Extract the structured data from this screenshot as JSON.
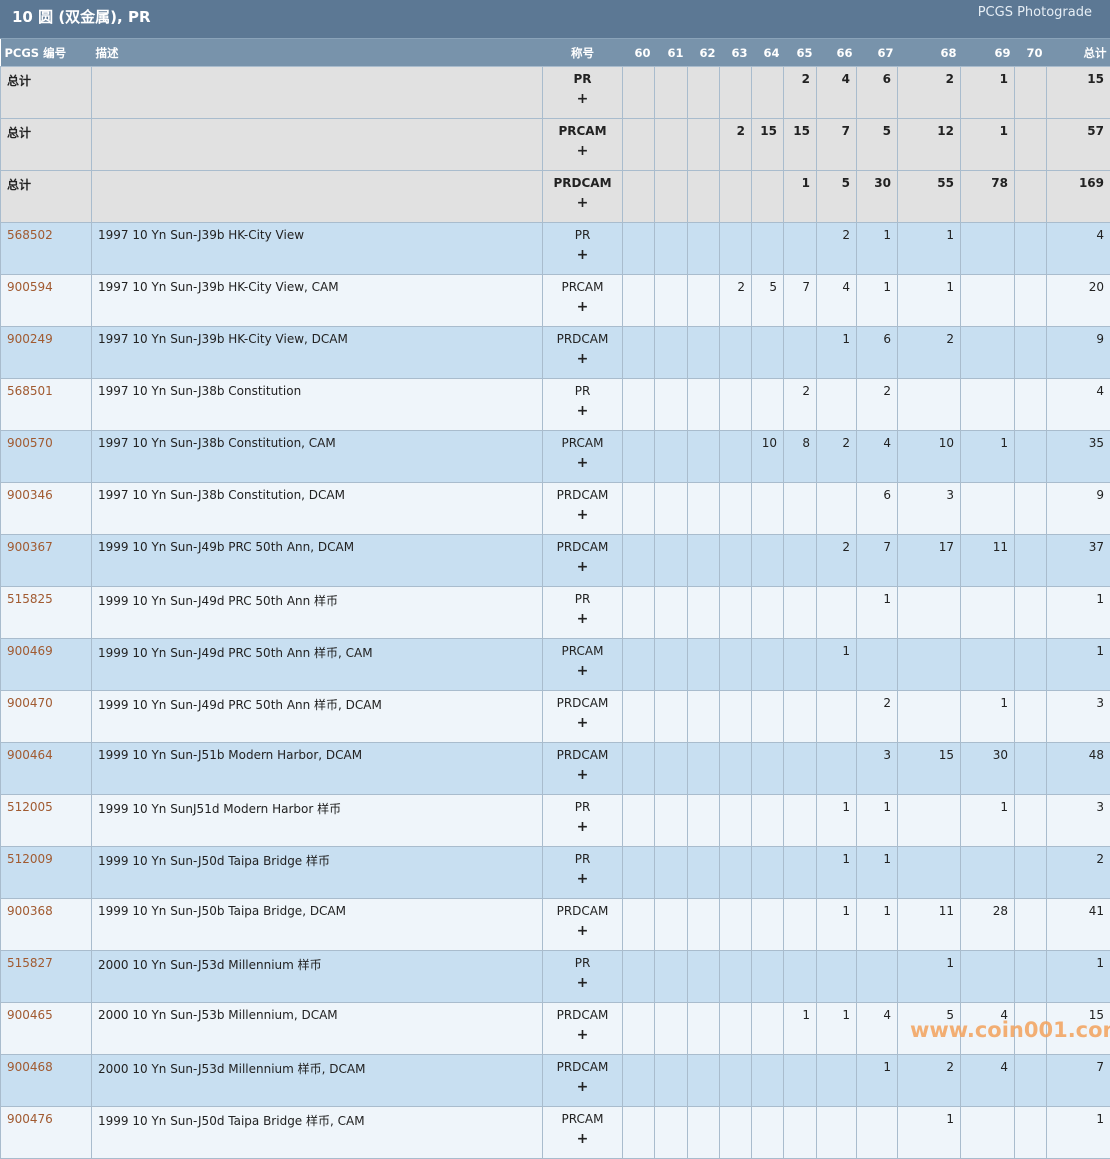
{
  "header": {
    "title": "10 圆 (双金属), PR",
    "brand": "PCGS Photograde"
  },
  "columns": [
    "PCGS 编号",
    "描述",
    "称号",
    "60",
    "61",
    "62",
    "63",
    "64",
    "65",
    "66",
    "67",
    "68",
    "69",
    "70",
    "总计"
  ],
  "expand_symbol": "+",
  "totals": [
    {
      "label": "总计",
      "designation": "PR",
      "grades": [
        "",
        "",
        "",
        "",
        "",
        "2",
        "4",
        "6",
        "2",
        "1",
        ""
      ],
      "total": "15"
    },
    {
      "label": "总计",
      "designation": "PRCAM",
      "grades": [
        "",
        "",
        "",
        "2",
        "15",
        "15",
        "7",
        "5",
        "12",
        "1",
        ""
      ],
      "total": "57"
    },
    {
      "label": "总计",
      "designation": "PRDCAM",
      "grades": [
        "",
        "",
        "",
        "",
        "",
        "1",
        "5",
        "30",
        "55",
        "78",
        ""
      ],
      "total": "169"
    }
  ],
  "rows": [
    {
      "id": "568502",
      "desc": "1997 10 Yn Sun-J39b HK-City View",
      "designation": "PR",
      "grades": [
        "",
        "",
        "",
        "",
        "",
        "",
        "2",
        "1",
        "1",
        "",
        ""
      ],
      "total": "4"
    },
    {
      "id": "900594",
      "desc": "1997 10 Yn Sun-J39b HK-City View, CAM",
      "designation": "PRCAM",
      "grades": [
        "",
        "",
        "",
        "2",
        "5",
        "7",
        "4",
        "1",
        "1",
        "",
        ""
      ],
      "total": "20"
    },
    {
      "id": "900249",
      "desc": "1997 10 Yn Sun-J39b HK-City View, DCAM",
      "designation": "PRDCAM",
      "grades": [
        "",
        "",
        "",
        "",
        "",
        "",
        "1",
        "6",
        "2",
        "",
        ""
      ],
      "total": "9"
    },
    {
      "id": "568501",
      "desc": "1997 10 Yn Sun-J38b Constitution",
      "designation": "PR",
      "grades": [
        "",
        "",
        "",
        "",
        "",
        "2",
        "",
        "2",
        "",
        "",
        ""
      ],
      "total": "4"
    },
    {
      "id": "900570",
      "desc": "1997 10 Yn Sun-J38b Constitution, CAM",
      "designation": "PRCAM",
      "grades": [
        "",
        "",
        "",
        "",
        "10",
        "8",
        "2",
        "4",
        "10",
        "1",
        ""
      ],
      "total": "35"
    },
    {
      "id": "900346",
      "desc": "1997 10 Yn Sun-J38b Constitution, DCAM",
      "designation": "PRDCAM",
      "grades": [
        "",
        "",
        "",
        "",
        "",
        "",
        "",
        "6",
        "3",
        "",
        ""
      ],
      "total": "9"
    },
    {
      "id": "900367",
      "desc": "1999 10 Yn Sun-J49b PRC 50th Ann, DCAM",
      "designation": "PRDCAM",
      "grades": [
        "",
        "",
        "",
        "",
        "",
        "",
        "2",
        "7",
        "17",
        "11",
        ""
      ],
      "total": "37"
    },
    {
      "id": "515825",
      "desc": "1999 10 Yn Sun-J49d PRC 50th Ann 样币",
      "designation": "PR",
      "grades": [
        "",
        "",
        "",
        "",
        "",
        "",
        "",
        "1",
        "",
        "",
        ""
      ],
      "total": "1"
    },
    {
      "id": "900469",
      "desc": "1999 10 Yn Sun-J49d PRC 50th Ann 样币, CAM",
      "designation": "PRCAM",
      "grades": [
        "",
        "",
        "",
        "",
        "",
        "",
        "1",
        "",
        "",
        "",
        ""
      ],
      "total": "1"
    },
    {
      "id": "900470",
      "desc": "1999 10 Yn Sun-J49d PRC 50th Ann 样币, DCAM",
      "designation": "PRDCAM",
      "grades": [
        "",
        "",
        "",
        "",
        "",
        "",
        "",
        "2",
        "",
        "1",
        ""
      ],
      "total": "3"
    },
    {
      "id": "900464",
      "desc": "1999 10 Yn Sun-J51b Modern Harbor, DCAM",
      "designation": "PRDCAM",
      "grades": [
        "",
        "",
        "",
        "",
        "",
        "",
        "",
        "3",
        "15",
        "30",
        ""
      ],
      "total": "48"
    },
    {
      "id": "512005",
      "desc": "1999 10 Yn SunJ51d Modern Harbor 样币",
      "designation": "PR",
      "grades": [
        "",
        "",
        "",
        "",
        "",
        "",
        "1",
        "1",
        "",
        "1",
        ""
      ],
      "total": "3"
    },
    {
      "id": "512009",
      "desc": "1999 10 Yn Sun-J50d Taipa Bridge 样币",
      "designation": "PR",
      "grades": [
        "",
        "",
        "",
        "",
        "",
        "",
        "1",
        "1",
        "",
        "",
        ""
      ],
      "total": "2"
    },
    {
      "id": "900368",
      "desc": "1999 10 Yn Sun-J50b Taipa Bridge, DCAM",
      "designation": "PRDCAM",
      "grades": [
        "",
        "",
        "",
        "",
        "",
        "",
        "1",
        "1",
        "11",
        "28",
        ""
      ],
      "total": "41"
    },
    {
      "id": "515827",
      "desc": "2000 10 Yn Sun-J53d Millennium 样币",
      "designation": "PR",
      "grades": [
        "",
        "",
        "",
        "",
        "",
        "",
        "",
        "",
        "1",
        "",
        ""
      ],
      "total": "1"
    },
    {
      "id": "900465",
      "desc": "2000 10 Yn Sun-J53b Millennium, DCAM",
      "designation": "PRDCAM",
      "grades": [
        "",
        "",
        "",
        "",
        "",
        "1",
        "1",
        "4",
        "5",
        "4",
        ""
      ],
      "total": "15"
    },
    {
      "id": "900468",
      "desc": "2000 10 Yn Sun-J53d Millennium 样币, DCAM",
      "designation": "PRDCAM",
      "grades": [
        "",
        "",
        "",
        "",
        "",
        "",
        "",
        "1",
        "2",
        "4",
        ""
      ],
      "total": "7"
    },
    {
      "id": "900476",
      "desc": "1999 10 Yn Sun-J50d Taipa Bridge 样币, CAM",
      "designation": "PRCAM",
      "grades": [
        "",
        "",
        "",
        "",
        "",
        "",
        "",
        "",
        "1",
        "",
        ""
      ],
      "total": "1"
    }
  ],
  "watermark": "www.coin001.com",
  "colors": {
    "title_bar": "#5c7894",
    "header_row": "#7893ab",
    "total_row": "#e1e1e1",
    "row_odd": "#c8dff1",
    "row_even": "#eff5fa",
    "link": "#a15a30"
  }
}
